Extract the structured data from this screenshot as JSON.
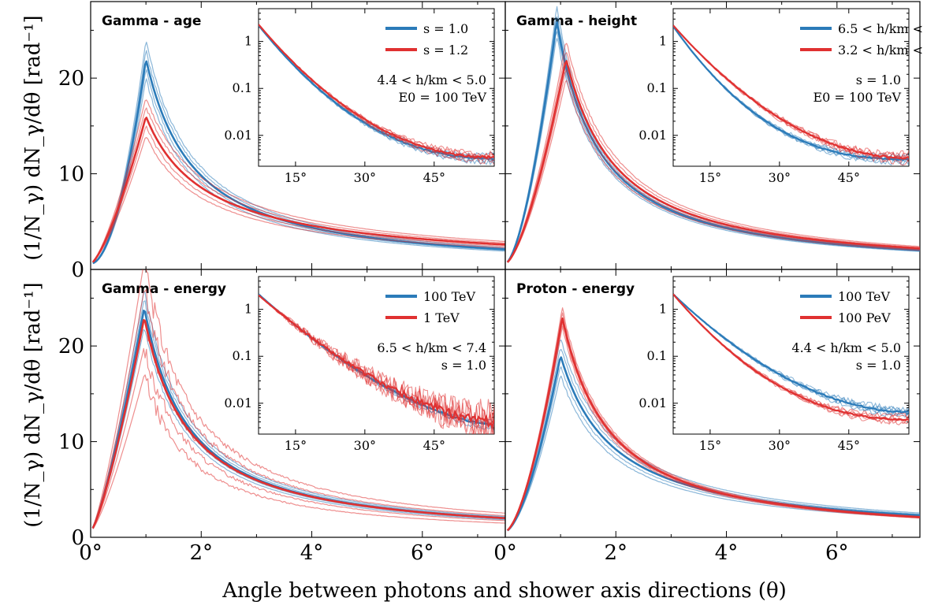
{
  "figure": {
    "xlabel": "Angle between photons and shower axis directions (θ)",
    "ylabel": "(1/N_γ) dN_γ/dθ [rad⁻¹]"
  },
  "chart_data": [
    {
      "type": "line",
      "title": "Gamma - age",
      "xlim": [
        0,
        7.5
      ],
      "ylim": [
        0,
        28
      ],
      "xticks": [
        "0°",
        "2°",
        "4°",
        "6°"
      ],
      "xtick_values": [
        0,
        2,
        4,
        6
      ],
      "yticks": [
        "0",
        "10",
        "20"
      ],
      "ytick_values": [
        0,
        10,
        20
      ],
      "series": [
        {
          "name": "s = 1.0",
          "color": "#2b7bb9",
          "peak_x": 1.0,
          "peak": 22.0,
          "spread": 2.0,
          "tail7_5": 2.1,
          "rise_k": 1.9
        },
        {
          "name": "s = 1.2",
          "color": "#e03131",
          "peak_x": 1.0,
          "peak": 16.0,
          "spread": 2.0,
          "tail7_5": 2.6,
          "rise_k": 1.4
        }
      ],
      "inset": {
        "xticks": [
          "15°",
          "30°",
          "45°"
        ],
        "xtick_values": [
          15,
          30,
          45
        ],
        "yticks": [
          "1",
          "0.1",
          "0.01"
        ],
        "ytick_values": [
          1,
          0.1,
          0.01
        ],
        "xlim": [
          7,
          58
        ],
        "ylim": [
          0.0022,
          5
        ],
        "legend": [
          "s = 1.0",
          "s = 1.2"
        ],
        "notes": [
          "4.4 < h/km < 5.0",
          "E0 = 100 TeV"
        ],
        "series": [
          {
            "color": "#2b7bb9",
            "start": 2.2,
            "end": 0.0032,
            "shape": 2.2,
            "noise": 0.06
          },
          {
            "color": "#e03131",
            "start": 2.3,
            "end": 0.0034,
            "shape": 2.1,
            "noise": 0.08
          }
        ]
      }
    },
    {
      "type": "line",
      "title": "Gamma - height",
      "xlim": [
        0,
        7.5
      ],
      "ylim": [
        0,
        28
      ],
      "xticks": [
        "0°",
        "2°",
        "4°",
        "6°"
      ],
      "xtick_values": [
        0,
        2,
        4,
        6
      ],
      "yticks": [],
      "ytick_values": [],
      "series": [
        {
          "name": "6.5 < h/km < 7.4",
          "color": "#2b7bb9",
          "peak_x": 0.93,
          "peak": 26.0,
          "spread": 1.5,
          "tail7_5": 2.0,
          "rise_k": 1.6
        },
        {
          "name": "3.2 < h/km < 3.8",
          "color": "#e03131",
          "peak_x": 1.1,
          "peak": 22.0,
          "spread": 2.0,
          "tail7_5": 2.2,
          "rise_k": 1.5
        }
      ],
      "inset": {
        "xticks": [
          "15°",
          "30°",
          "45°"
        ],
        "xtick_values": [
          15,
          30,
          45
        ],
        "yticks": [
          "1",
          "0.1",
          "0.01"
        ],
        "ytick_values": [
          1,
          0.1,
          0.01
        ],
        "xlim": [
          7,
          58
        ],
        "ylim": [
          0.0022,
          5
        ],
        "legend": [
          "6.5 < h/km < 7.4",
          "3.2 < h/km < 3.8"
        ],
        "notes": [
          "s = 1.0",
          "E0 = 100 TeV"
        ],
        "series": [
          {
            "color": "#2b7bb9",
            "start": 2.1,
            "end": 0.0031,
            "shape": 2.5,
            "noise": 0.06
          },
          {
            "color": "#e03131",
            "start": 2.2,
            "end": 0.0033,
            "shape": 2.0,
            "noise": 0.08
          }
        ]
      }
    },
    {
      "type": "line",
      "title": "Gamma - energy",
      "xlim": [
        0,
        7.5
      ],
      "ylim": [
        0,
        28
      ],
      "xticks": [
        "0°",
        "2°",
        "4°",
        "6°"
      ],
      "xtick_values": [
        0,
        2,
        4,
        6
      ],
      "yticks": [
        "0",
        "10",
        "20"
      ],
      "ytick_values": [
        0,
        10,
        20
      ],
      "series": [
        {
          "name": "100 TeV",
          "color": "#2b7bb9",
          "peak_x": 0.97,
          "peak": 24.0,
          "spread": 2.0,
          "tail7_5": 2.0,
          "rise_k": 1.3
        },
        {
          "name": "1 TeV",
          "color": "#e03131",
          "peak_x": 0.97,
          "peak": 23.0,
          "spread": 6.0,
          "tail7_5": 2.0,
          "rise_k": 1.3
        }
      ],
      "inset": {
        "xticks": [
          "15°",
          "30°",
          "45°"
        ],
        "xtick_values": [
          15,
          30,
          45
        ],
        "yticks": [
          "1",
          "0.1",
          "0.01"
        ],
        "ytick_values": [
          1,
          0.1,
          0.01
        ],
        "xlim": [
          7,
          58
        ],
        "ylim": [
          0.0022,
          5
        ],
        "legend": [
          "100 TeV",
          "1 TeV"
        ],
        "notes": [
          "6.5 < h/km < 7.4",
          "s = 1.0"
        ],
        "series": [
          {
            "color": "#2b7bb9",
            "start": 2.1,
            "end": 0.0035,
            "shape": 1.6,
            "noise": 0.06
          },
          {
            "color": "#e03131",
            "start": 2.0,
            "end": 0.004,
            "shape": 1.6,
            "noise": 0.45
          }
        ]
      }
    },
    {
      "type": "line",
      "title": "Proton - energy",
      "xlim": [
        0,
        7.5
      ],
      "ylim": [
        0,
        28
      ],
      "xticks": [
        "0°",
        "2°",
        "4°",
        "6°"
      ],
      "xtick_values": [
        0,
        2,
        4,
        6
      ],
      "yticks": [],
      "ytick_values": [],
      "series": [
        {
          "name": "100 TeV",
          "color": "#2b7bb9",
          "peak_x": 1.0,
          "peak": 19.0,
          "spread": 2.0,
          "tail7_5": 2.3,
          "rise_k": 1.6
        },
        {
          "name": "100 PeV",
          "color": "#e03131",
          "peak_x": 1.03,
          "peak": 23.0,
          "spread": 1.0,
          "tail7_5": 2.1,
          "rise_k": 1.6
        }
      ],
      "inset": {
        "xticks": [
          "15°",
          "30°",
          "45°"
        ],
        "xtick_values": [
          15,
          30,
          45
        ],
        "yticks": [
          "1",
          "0.1",
          "0.01"
        ],
        "ytick_values": [
          1,
          0.1,
          0.01
        ],
        "xlim": [
          7,
          58
        ],
        "ylim": [
          0.0022,
          5
        ],
        "legend": [
          "100 TeV",
          "100 PeV"
        ],
        "notes": [
          "4.4 < h/km < 5.0",
          "s = 1.0"
        ],
        "series": [
          {
            "color": "#2b7bb9",
            "start": 2.1,
            "end": 0.0065,
            "shape": 1.9,
            "noise": 0.07
          },
          {
            "color": "#e03131",
            "start": 2.1,
            "end": 0.0045,
            "shape": 2.2,
            "noise": 0.06
          }
        ]
      }
    }
  ]
}
